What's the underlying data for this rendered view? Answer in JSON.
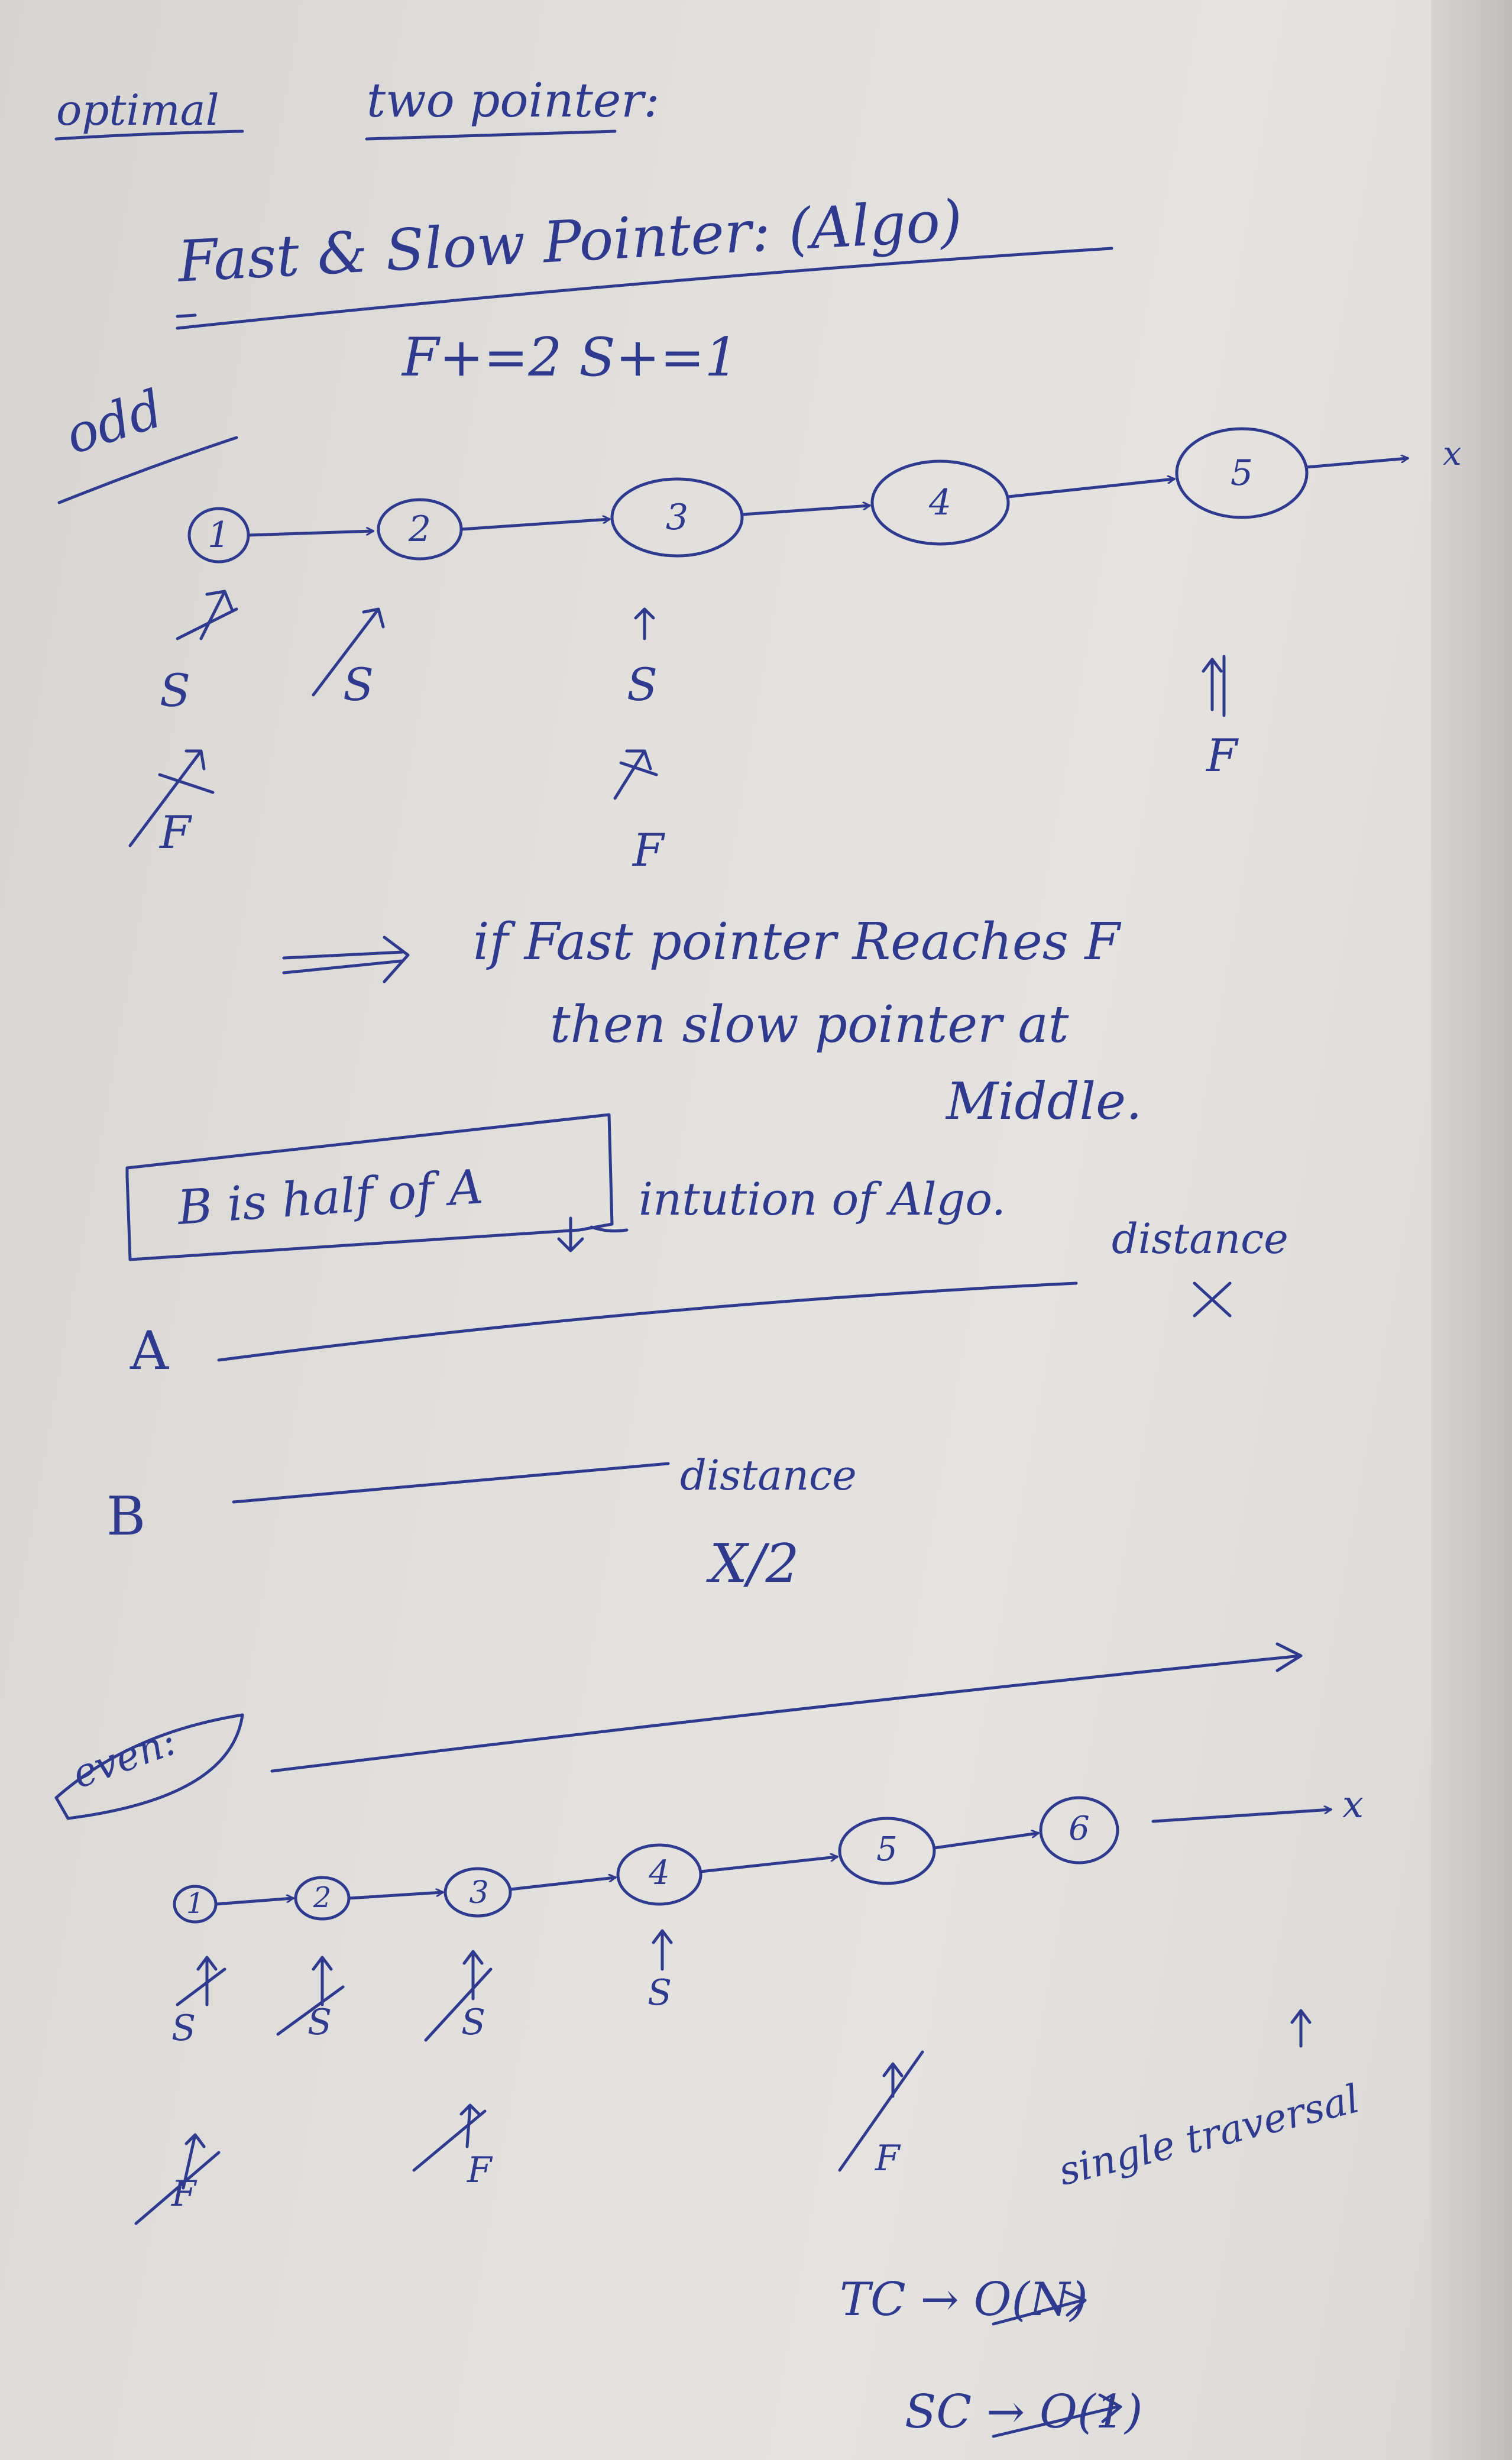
{
  "title": {
    "optimal": "optimal",
    "two_pointer": "two pointer:",
    "algo_name": "Fast & Slow Pointer: (Algo)",
    "speeds": "F+=2    S+=1"
  },
  "odd_section": {
    "label": "odd",
    "nodes": [
      "1",
      "2",
      "3",
      "4",
      "5"
    ],
    "end": "x",
    "pointers": {
      "slow": "S",
      "fast": "F"
    }
  },
  "observation": {
    "line1": "if Fast pointer Reaches F",
    "line2": "then slow pointer at",
    "line3": "Middle."
  },
  "intuition": {
    "box": "B is half of A",
    "note": "intution of Algo."
  },
  "distance_diagram": {
    "a_label": "A",
    "a_distance": "distance",
    "a_value": "X",
    "b_label": "B",
    "b_distance": "distance",
    "b_value": "X/2"
  },
  "even_section": {
    "label": "even:",
    "nodes": [
      "1",
      "2",
      "3",
      "4",
      "5",
      "6"
    ],
    "end": "x",
    "pointers": {
      "slow": "S",
      "fast": "F"
    }
  },
  "complexity": {
    "single": "single traversal",
    "tc": "TC → O(N)",
    "sc": "SC → O(1)"
  },
  "colors": {
    "ink": "#2f3a8f",
    "paper": "#e2e0dd"
  }
}
